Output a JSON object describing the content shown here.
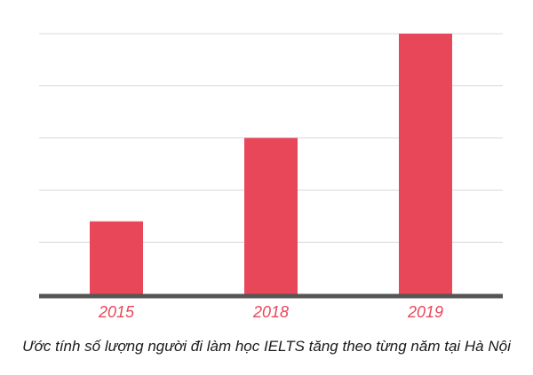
{
  "chart_data": {
    "type": "bar",
    "categories": [
      "2015",
      "2018",
      "2019"
    ],
    "values": [
      1.4,
      3.0,
      5.0
    ],
    "ylim": [
      0,
      5
    ],
    "grid": true,
    "bar_color": "#e84659",
    "label_color": "#e84659",
    "grid_color": "#d9d9d9",
    "baseline_color": "#555555",
    "caption": "Ước tính số lượng người đi làm học IELTS tăng theo từng năm tại Hà Nội"
  }
}
